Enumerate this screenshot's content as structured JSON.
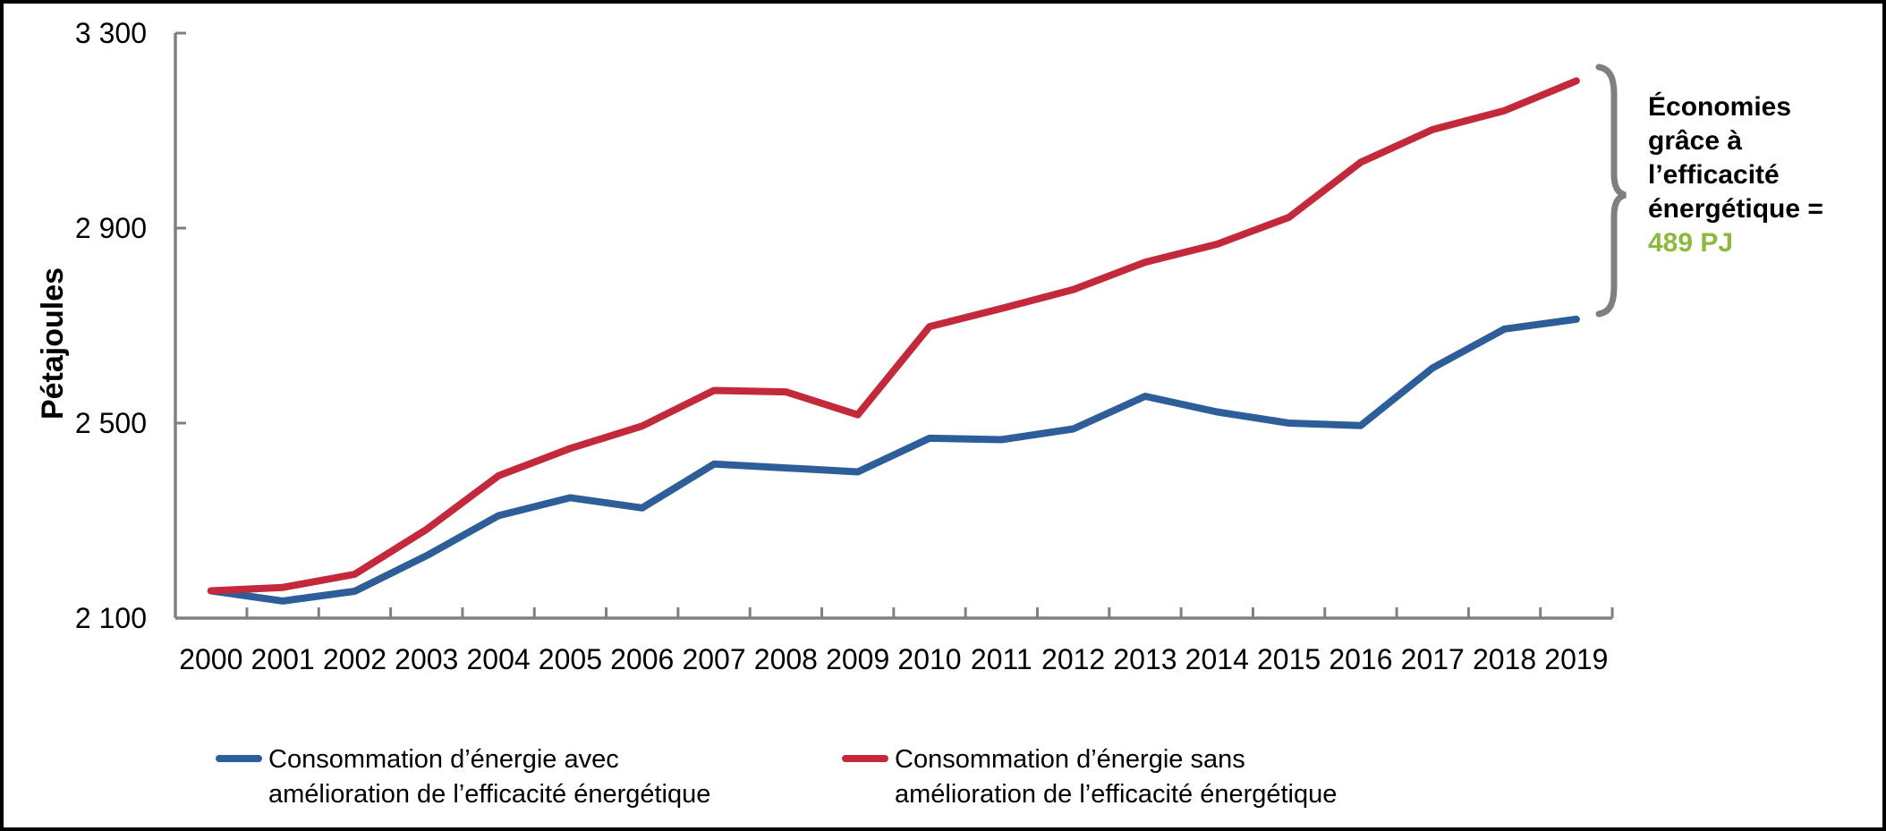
{
  "chart_data": {
    "type": "line",
    "title": "",
    "xlabel": "",
    "ylabel": "Pétajoules",
    "x": [
      "2000",
      "2001",
      "2002",
      "2003",
      "2004",
      "2005",
      "2006",
      "2007",
      "2008",
      "2009",
      "2010",
      "2011",
      "2012",
      "2013",
      "2014",
      "2015",
      "2016",
      "2017",
      "2018",
      "2019"
    ],
    "series": [
      {
        "name": "Consommation d’énergie avec amélioration de l’efficacité énergétique",
        "color": "#2E5E9A",
        "values": [
          2156,
          2135,
          2155,
          2228,
          2310,
          2347,
          2326,
          2416,
          2408,
          2400,
          2469,
          2466,
          2488,
          2555,
          2523,
          2500,
          2495,
          2613,
          2693,
          2713
        ]
      },
      {
        "name": "Consommation d’énergie sans amélioration de l’efficacité énergétique",
        "color": "#C3293B",
        "values": [
          2156,
          2163,
          2190,
          2282,
          2392,
          2448,
          2494,
          2567,
          2564,
          2517,
          2698,
          2735,
          2774,
          2830,
          2867,
          2922,
          3035,
          3102,
          3141,
          3202
        ]
      }
    ],
    "ylim": [
      2100,
      3300
    ],
    "y_ticks": [
      2100,
      2500,
      2900,
      3300
    ],
    "y_tick_labels": [
      "2 100",
      "2 500",
      "2 900",
      "3 300"
    ],
    "grid": false,
    "legend_position": "bottom"
  },
  "annotation": {
    "lines": [
      "Économies",
      "grâce à",
      "l’efficacité",
      "énergétique ="
    ],
    "value": "489 PJ",
    "value_color": "#8CBA3E",
    "brace_color": "#7F7F7F"
  },
  "legend": {
    "items": [
      {
        "line1": "Consommation d’énergie avec",
        "line2": "amélioration de l’efficacité énergétique",
        "color": "#2E5E9A"
      },
      {
        "line1": "Consommation d’énergie sans",
        "line2": "amélioration de l’efficacité énergétique",
        "color": "#C3293B"
      }
    ]
  },
  "axis": {
    "color": "#808080",
    "label_color": "#000000"
  }
}
